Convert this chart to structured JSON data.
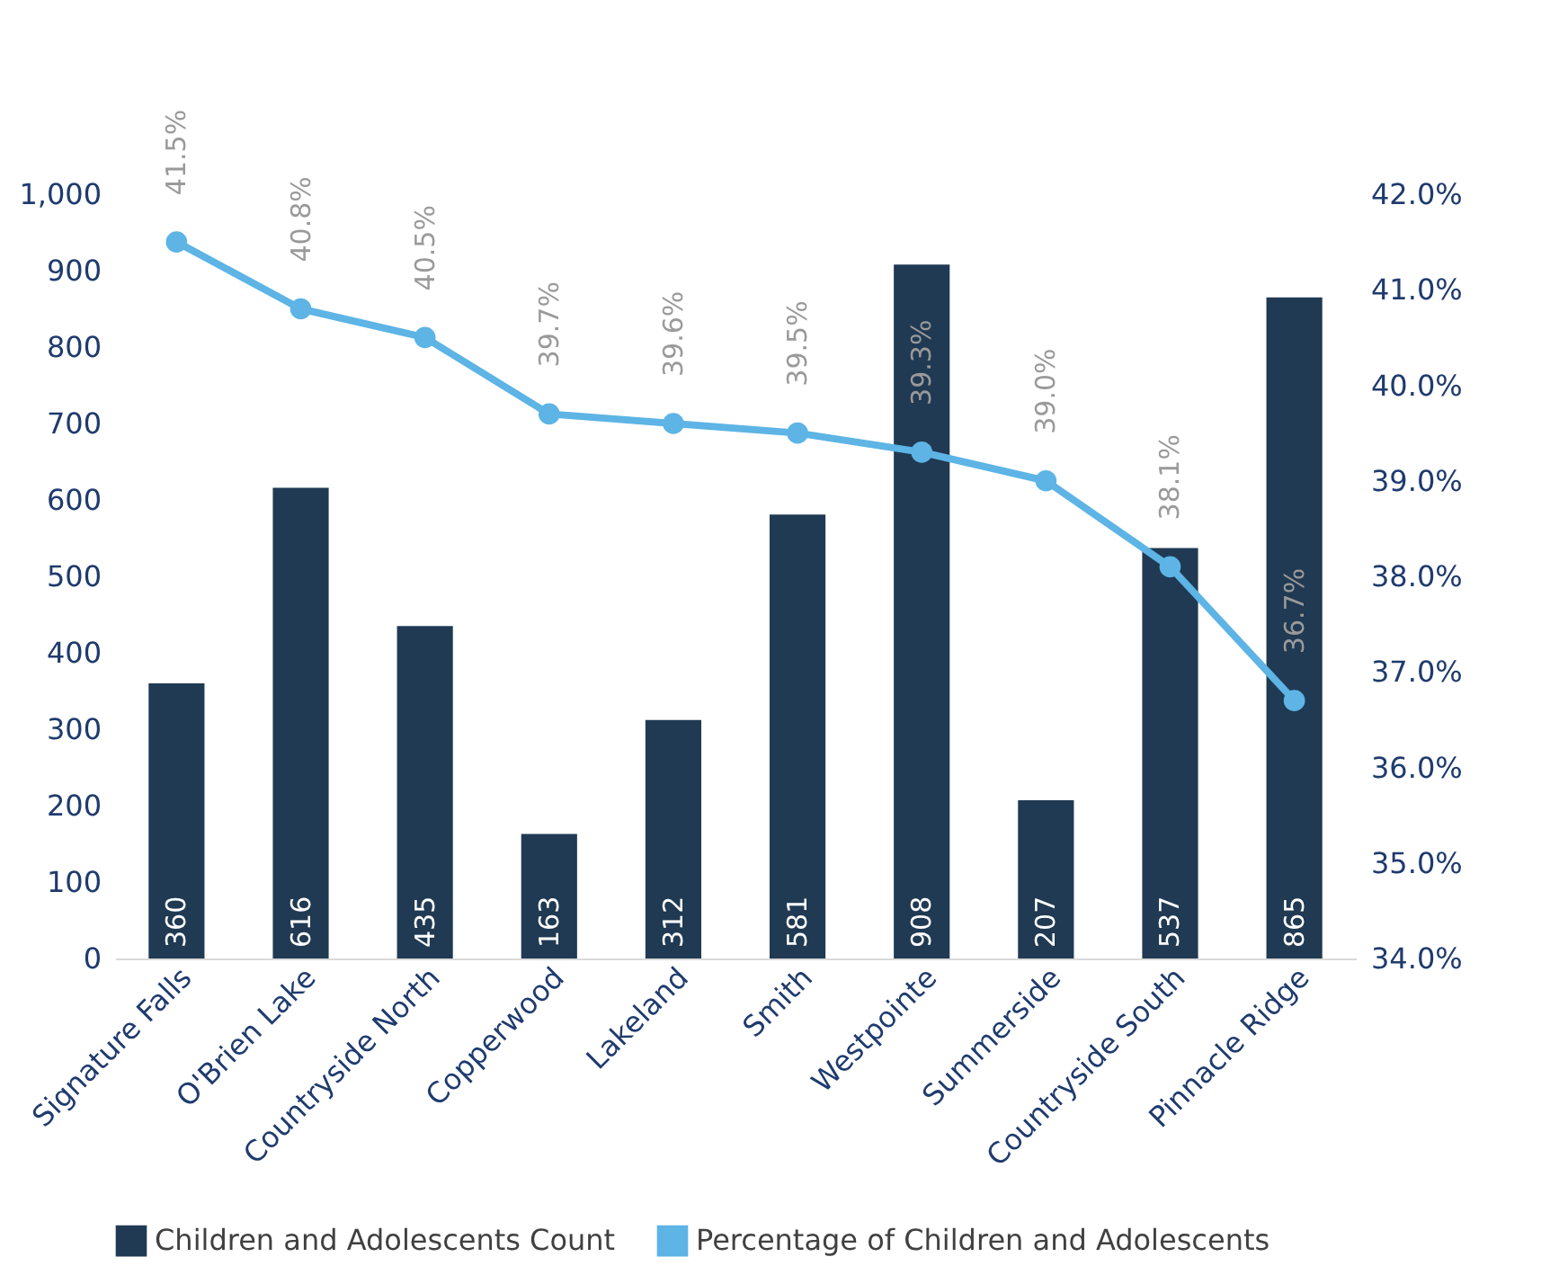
{
  "chart_data": {
    "type": "bar",
    "categories": [
      "Signature Falls",
      "O'Brien Lake",
      "Countryside North",
      "Copperwood",
      "Lakeland",
      "Smith",
      "Westpointe",
      "Summerside",
      "Countryside South",
      "Pinnacle Ridge"
    ],
    "series": [
      {
        "name": "Children and Adolescents Count",
        "color": "#203a53",
        "values": [
          360,
          616,
          435,
          163,
          312,
          581,
          908,
          207,
          537,
          865
        ],
        "value_labels": [
          "360",
          "616",
          "435",
          "163",
          "312",
          "581",
          "908",
          "207",
          "537",
          "865"
        ]
      },
      {
        "name": "Percentage of Children and Adolescents",
        "type": "line",
        "axis": "y2",
        "color": "#5db4e5",
        "marker": "circle",
        "values": [
          41.5,
          40.8,
          40.5,
          39.7,
          39.6,
          39.5,
          39.3,
          39.0,
          38.1,
          36.7
        ],
        "value_labels": [
          "41.5%",
          "40.8%",
          "40.5%",
          "39.7%",
          "39.6%",
          "39.5%",
          "39.3%",
          "39.0%",
          "38.1%",
          "36.7%"
        ]
      }
    ],
    "ylim": [
      0,
      1000
    ],
    "yticks": [
      0,
      100,
      200,
      300,
      400,
      500,
      600,
      700,
      800,
      900,
      {
        "value": 1000,
        "label": "1,000"
      }
    ],
    "y2lim": [
      34,
      42
    ],
    "y2ticks": [
      {
        "value": 34,
        "label": "34.0%"
      },
      {
        "value": 35,
        "label": "35.0%"
      },
      {
        "value": 36,
        "label": "36.0%"
      },
      {
        "value": 37,
        "label": "37.0%"
      },
      {
        "value": 38,
        "label": "38.0%"
      },
      {
        "value": 39,
        "label": "39.0%"
      },
      {
        "value": 40,
        "label": "40.0%"
      },
      {
        "value": 41,
        "label": "41.0%"
      },
      {
        "value": 42,
        "label": "42.0%"
      }
    ],
    "grid": false,
    "legend": "bottom"
  }
}
